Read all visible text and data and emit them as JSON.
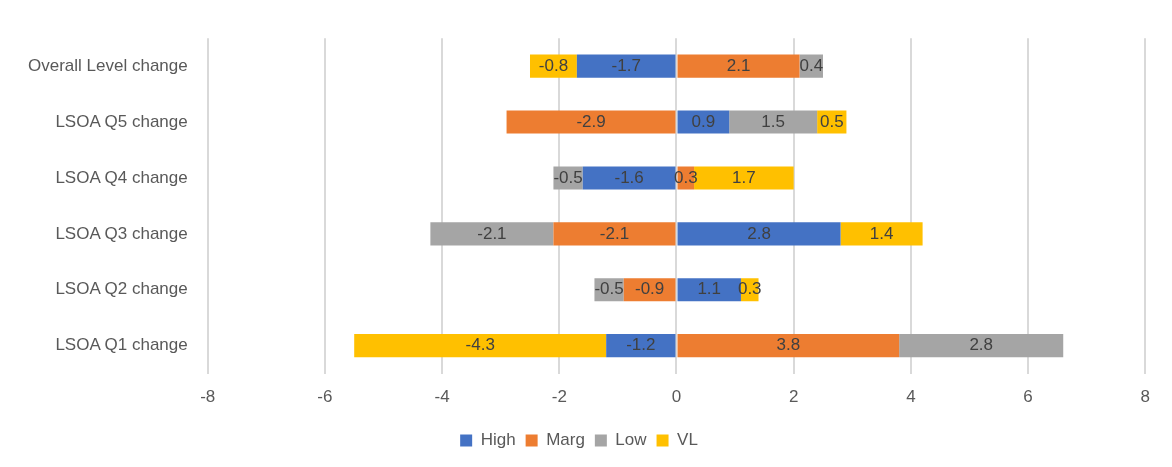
{
  "chart_data": {
    "type": "bar",
    "orientation": "horizontal",
    "stacked": true,
    "categories": [
      "Overall Level change",
      "LSOA Q5 change",
      "LSOA Q4 change",
      "LSOA Q3 change",
      "LSOA Q2 change",
      "LSOA Q1 change"
    ],
    "series": [
      {
        "name": "High",
        "color": "#4472c4",
        "values": [
          -1.7,
          0.9,
          -1.6,
          2.8,
          1.1,
          -1.2
        ]
      },
      {
        "name": "Marg",
        "color": "#ed7d31",
        "values": [
          2.1,
          -2.9,
          0.3,
          -2.1,
          -0.9,
          3.8
        ]
      },
      {
        "name": "Low",
        "color": "#a5a5a5",
        "values": [
          0.4,
          1.5,
          -0.5,
          -2.1,
          -0.5,
          2.8
        ]
      },
      {
        "name": "VL",
        "color": "#ffc000",
        "values": [
          -0.8,
          0.5,
          1.7,
          1.4,
          0.3,
          -4.3
        ]
      }
    ],
    "xlim": [
      -8,
      8
    ],
    "xticks": [
      -8,
      -6,
      -4,
      -2,
      0,
      2,
      4,
      6,
      8
    ],
    "grid": "x",
    "legend": "bottom",
    "data_labels": true
  }
}
